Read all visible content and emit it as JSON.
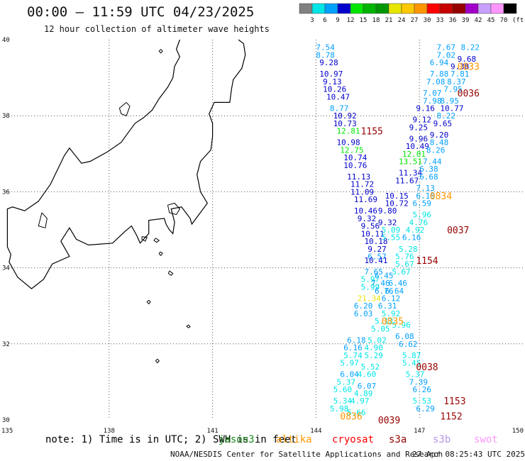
{
  "title": "00:00 – 11:59 UTC 04/23/2025",
  "subtitle": "12 hour collection of altimeter wave heights",
  "colorbar": {
    "unit": "(ft)",
    "ticks": [
      "3",
      "6",
      "9",
      "12",
      "15",
      "18",
      "21",
      "24",
      "27",
      "30",
      "33",
      "36",
      "39",
      "42",
      "45",
      "70"
    ],
    "colors": [
      "#808080",
      "#00e6e6",
      "#00a0ff",
      "#0000cd",
      "#00e600",
      "#00b400",
      "#009600",
      "#e6e600",
      "#ffc800",
      "#ff9600",
      "#ff0000",
      "#c80000",
      "#960000",
      "#a000c8",
      "#c8a0ff",
      "#ff96ff",
      "#000000"
    ]
  },
  "axes": {
    "lon_labels": [
      "135",
      "138",
      "141",
      "144",
      "147",
      "150"
    ],
    "lat_labels": [
      "40",
      "38",
      "36",
      "34",
      "32",
      "30"
    ]
  },
  "note": "note: 1) Time is in UTC; 2) SWH is in feet",
  "satellites": [
    {
      "name": "jason3",
      "color": "#1a8c1a"
    },
    {
      "name": "altika",
      "color": "#ff9600"
    },
    {
      "name": "cryosat",
      "color": "#ff0000"
    },
    {
      "name": "s3a",
      "color": "#960000"
    },
    {
      "name": "s3b",
      "color": "#b496e6"
    },
    {
      "name": "swot",
      "color": "#ff96ff"
    }
  ],
  "credit": "NOAA/NESDIS Center for Satellite Applications and Research",
  "generated": "27 Apr 08:25:43 UTC 2025",
  "pass_times": [
    {
      "label": "1155",
      "lon": 145.3,
      "lat": 37.6
    },
    {
      "label": "0036",
      "lon": 148.1,
      "lat": 38.6
    },
    {
      "label": "0037",
      "lon": 147.8,
      "lat": 35.0
    },
    {
      "label": "1154",
      "lon": 146.9,
      "lat": 34.2
    },
    {
      "label": "0038",
      "lon": 146.9,
      "lat": 31.4
    },
    {
      "label": "1153",
      "lon": 147.7,
      "lat": 30.5
    },
    {
      "label": "1152",
      "lon": 147.6,
      "lat": 30.1
    },
    {
      "label": "0039",
      "lon": 145.8,
      "lat": 30.0
    },
    {
      "label": "0834",
      "lon": 147.3,
      "lat": 35.9
    },
    {
      "label": "0835",
      "lon": 145.9,
      "lat": 32.6
    },
    {
      "label": "0836",
      "lon": 144.7,
      "lat": 30.1
    },
    {
      "label": "0833",
      "lon": 148.1,
      "lat": 39.3
    }
  ],
  "observations": [
    {
      "lon": 144.0,
      "lat": 39.8,
      "v": "7.54"
    },
    {
      "lon": 144.0,
      "lat": 39.6,
      "v": "8.78"
    },
    {
      "lon": 144.1,
      "lat": 39.4,
      "v": "9.28"
    },
    {
      "lon": 144.1,
      "lat": 39.1,
      "v": "10.97"
    },
    {
      "lon": 144.2,
      "lat": 38.9,
      "v": "9.13"
    },
    {
      "lon": 144.2,
      "lat": 38.7,
      "v": "10.26"
    },
    {
      "lon": 144.3,
      "lat": 38.5,
      "v": "10.47"
    },
    {
      "lon": 144.4,
      "lat": 38.2,
      "v": "8.77"
    },
    {
      "lon": 144.5,
      "lat": 38.0,
      "v": "10.92"
    },
    {
      "lon": 144.5,
      "lat": 37.8,
      "v": "10.73"
    },
    {
      "lon": 144.6,
      "lat": 37.6,
      "v": "12.81"
    },
    {
      "lon": 144.6,
      "lat": 37.3,
      "v": "10.98"
    },
    {
      "lon": 144.7,
      "lat": 37.1,
      "v": "12.75"
    },
    {
      "lon": 144.8,
      "lat": 36.9,
      "v": "10.74"
    },
    {
      "lon": 144.8,
      "lat": 36.7,
      "v": "10.76"
    },
    {
      "lon": 144.9,
      "lat": 36.4,
      "v": "11.13"
    },
    {
      "lon": 145.0,
      "lat": 36.2,
      "v": "11.72"
    },
    {
      "lon": 145.0,
      "lat": 36.0,
      "v": "11.09"
    },
    {
      "lon": 145.1,
      "lat": 35.8,
      "v": "11.69"
    },
    {
      "lon": 145.1,
      "lat": 35.5,
      "v": "10.46"
    },
    {
      "lon": 145.2,
      "lat": 35.3,
      "v": "9.32"
    },
    {
      "lon": 145.3,
      "lat": 35.1,
      "v": "9.56"
    },
    {
      "lon": 145.3,
      "lat": 34.9,
      "v": "10.11"
    },
    {
      "lon": 145.4,
      "lat": 34.7,
      "v": "10.18"
    },
    {
      "lon": 145.5,
      "lat": 34.5,
      "v": "9.27"
    },
    {
      "lon": 145.5,
      "lat": 34.3,
      "v": "6.57"
    },
    {
      "lon": 145.4,
      "lat": 34.2,
      "v": "10.41"
    },
    {
      "lon": 145.4,
      "lat": 33.9,
      "v": "7.65"
    },
    {
      "lon": 145.3,
      "lat": 33.7,
      "v": "5.97"
    },
    {
      "lon": 145.3,
      "lat": 33.5,
      "v": "5.99"
    },
    {
      "lon": 145.2,
      "lat": 33.2,
      "v": "21.34"
    },
    {
      "lon": 145.1,
      "lat": 33.0,
      "v": "6.20"
    },
    {
      "lon": 145.1,
      "lat": 32.8,
      "v": "6.03"
    },
    {
      "lon": 144.9,
      "lat": 32.1,
      "v": "6.18"
    },
    {
      "lon": 144.8,
      "lat": 31.9,
      "v": "6.16"
    },
    {
      "lon": 144.8,
      "lat": 31.7,
      "v": "5.74"
    },
    {
      "lon": 144.7,
      "lat": 31.5,
      "v": "5.97"
    },
    {
      "lon": 144.7,
      "lat": 31.2,
      "v": "6.04"
    },
    {
      "lon": 144.6,
      "lat": 31.0,
      "v": "5.37"
    },
    {
      "lon": 144.5,
      "lat": 30.8,
      "v": "5.60"
    },
    {
      "lon": 144.5,
      "lat": 30.5,
      "v": "5.34"
    },
    {
      "lon": 144.4,
      "lat": 30.3,
      "v": "5.98"
    },
    {
      "lon": 147.5,
      "lat": 39.8,
      "v": "7.67"
    },
    {
      "lon": 148.2,
      "lat": 39.8,
      "v": "8.22"
    },
    {
      "lon": 147.5,
      "lat": 39.6,
      "v": "7.02"
    },
    {
      "lon": 148.1,
      "lat": 39.5,
      "v": "9.68"
    },
    {
      "lon": 147.3,
      "lat": 39.4,
      "v": "6.94"
    },
    {
      "lon": 147.9,
      "lat": 39.3,
      "v": "9.38"
    },
    {
      "lon": 147.3,
      "lat": 39.1,
      "v": "7.88"
    },
    {
      "lon": 147.9,
      "lat": 39.1,
      "v": "7.81"
    },
    {
      "lon": 147.2,
      "lat": 38.9,
      "v": "7.08"
    },
    {
      "lon": 147.8,
      "lat": 38.9,
      "v": "8.37"
    },
    {
      "lon": 147.1,
      "lat": 38.6,
      "v": "7.07"
    },
    {
      "lon": 147.7,
      "lat": 38.7,
      "v": "7.95"
    },
    {
      "lon": 147.1,
      "lat": 38.4,
      "v": "7.98"
    },
    {
      "lon": 147.6,
      "lat": 38.4,
      "v": "8.95"
    },
    {
      "lon": 146.9,
      "lat": 38.2,
      "v": "9.16"
    },
    {
      "lon": 147.6,
      "lat": 38.2,
      "v": "10.77"
    },
    {
      "lon": 146.8,
      "lat": 37.9,
      "v": "9.12"
    },
    {
      "lon": 147.5,
      "lat": 38.0,
      "v": "8.22"
    },
    {
      "lon": 146.7,
      "lat": 37.7,
      "v": "9.25"
    },
    {
      "lon": 147.4,
      "lat": 37.8,
      "v": "9.65"
    },
    {
      "lon": 146.7,
      "lat": 37.4,
      "v": "9.96"
    },
    {
      "lon": 147.3,
      "lat": 37.5,
      "v": "9.20"
    },
    {
      "lon": 146.6,
      "lat": 37.2,
      "v": "10.49"
    },
    {
      "lon": 147.3,
      "lat": 37.3,
      "v": "8.48"
    },
    {
      "lon": 146.5,
      "lat": 37.0,
      "v": "12.01"
    },
    {
      "lon": 147.2,
      "lat": 37.1,
      "v": "8.26"
    },
    {
      "lon": 146.4,
      "lat": 36.8,
      "v": "13.51"
    },
    {
      "lon": 147.1,
      "lat": 36.8,
      "v": "7.44"
    },
    {
      "lon": 146.4,
      "lat": 36.5,
      "v": "11.34"
    },
    {
      "lon": 147.0,
      "lat": 36.6,
      "v": "6.38"
    },
    {
      "lon": 146.3,
      "lat": 36.3,
      "v": "11.67"
    },
    {
      "lon": 147.0,
      "lat": 36.4,
      "v": "6.68"
    },
    {
      "lon": 146.9,
      "lat": 36.1,
      "v": "7.13"
    },
    {
      "lon": 146.0,
      "lat": 35.9,
      "v": "10.15"
    },
    {
      "lon": 146.9,
      "lat": 35.9,
      "v": "6.16"
    },
    {
      "lon": 146.0,
      "lat": 35.7,
      "v": "10.72"
    },
    {
      "lon": 146.8,
      "lat": 35.7,
      "v": "6.59"
    },
    {
      "lon": 145.8,
      "lat": 35.5,
      "v": "9.80"
    },
    {
      "lon": 146.8,
      "lat": 35.4,
      "v": "5.96"
    },
    {
      "lon": 145.8,
      "lat": 35.2,
      "v": "9.32"
    },
    {
      "lon": 146.7,
      "lat": 35.2,
      "v": "4.76"
    },
    {
      "lon": 145.9,
      "lat": 35.0,
      "v": "5.09"
    },
    {
      "lon": 146.6,
      "lat": 35.0,
      "v": "4.92"
    },
    {
      "lon": 145.9,
      "lat": 34.8,
      "v": "5.55"
    },
    {
      "lon": 146.5,
      "lat": 34.8,
      "v": "6.16"
    },
    {
      "lon": 146.4,
      "lat": 34.5,
      "v": "5.28"
    },
    {
      "lon": 146.3,
      "lat": 34.3,
      "v": "5.76"
    },
    {
      "lon": 146.3,
      "lat": 34.1,
      "v": "5.67"
    },
    {
      "lon": 146.2,
      "lat": 33.9,
      "v": "5.67"
    },
    {
      "lon": 145.7,
      "lat": 33.8,
      "v": "6.45"
    },
    {
      "lon": 146.1,
      "lat": 33.6,
      "v": "6.46"
    },
    {
      "lon": 145.6,
      "lat": 33.6,
      "v": "7.46"
    },
    {
      "lon": 146.0,
      "lat": 33.4,
      "v": "6.64"
    },
    {
      "lon": 145.7,
      "lat": 33.4,
      "v": "6.76"
    },
    {
      "lon": 145.9,
      "lat": 33.2,
      "v": "6.12"
    },
    {
      "lon": 145.8,
      "lat": 33.0,
      "v": "6.31"
    },
    {
      "lon": 145.9,
      "lat": 32.8,
      "v": "5.92"
    },
    {
      "lon": 145.7,
      "lat": 32.6,
      "v": "5.12"
    },
    {
      "lon": 146.2,
      "lat": 32.5,
      "v": "5.96"
    },
    {
      "lon": 145.6,
      "lat": 32.4,
      "v": "5.05"
    },
    {
      "lon": 146.3,
      "lat": 32.2,
      "v": "6.08"
    },
    {
      "lon": 145.5,
      "lat": 32.1,
      "v": "5.02"
    },
    {
      "lon": 146.4,
      "lat": 32.0,
      "v": "6.62"
    },
    {
      "lon": 145.4,
      "lat": 31.9,
      "v": "4.90"
    },
    {
      "lon": 146.5,
      "lat": 31.7,
      "v": "5.87"
    },
    {
      "lon": 145.4,
      "lat": 31.7,
      "v": "5.29"
    },
    {
      "lon": 146.5,
      "lat": 31.5,
      "v": "5.45"
    },
    {
      "lon": 145.3,
      "lat": 31.4,
      "v": "5.52"
    },
    {
      "lon": 146.6,
      "lat": 31.2,
      "v": "5.37"
    },
    {
      "lon": 145.2,
      "lat": 31.2,
      "v": "4.60"
    },
    {
      "lon": 146.7,
      "lat": 31.0,
      "v": "7.39"
    },
    {
      "lon": 145.2,
      "lat": 30.9,
      "v": "6.07"
    },
    {
      "lon": 146.8,
      "lat": 30.8,
      "v": "6.26"
    },
    {
      "lon": 145.1,
      "lat": 30.7,
      "v": "4.89"
    },
    {
      "lon": 146.8,
      "lat": 30.5,
      "v": "5.53"
    },
    {
      "lon": 145.0,
      "lat": 30.5,
      "v": "4.97"
    },
    {
      "lon": 146.9,
      "lat": 30.3,
      "v": "6.29"
    },
    {
      "lon": 144.9,
      "lat": 30.2,
      "v": "5.66"
    }
  ]
}
